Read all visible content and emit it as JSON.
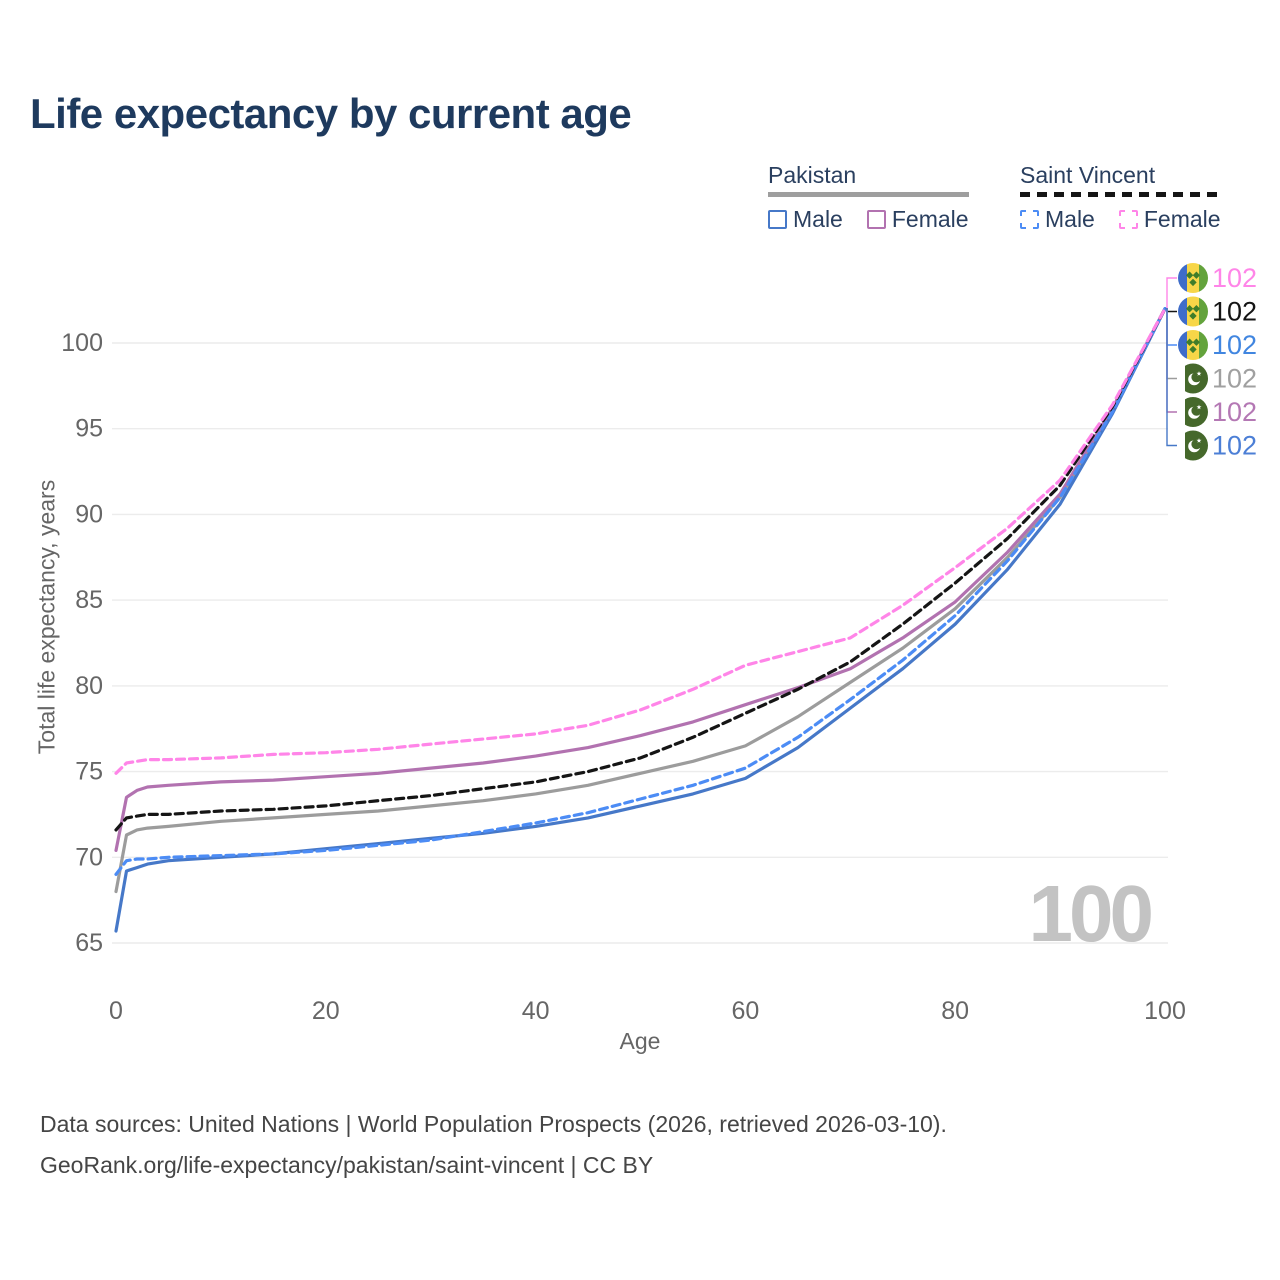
{
  "page": {
    "title": "Life expectancy by current age"
  },
  "legend": {
    "pakistan": {
      "label": "Pakistan",
      "underline_color": "#9E9E9E",
      "underline_style": "solid",
      "male_label": "Male",
      "female_label": "Female",
      "male_color": "#4678C8",
      "female_color": "#B272B0"
    },
    "saint_vincent": {
      "label": "Saint Vincent",
      "underline_color": "#151515",
      "underline_style": "dashed",
      "male_label": "Male",
      "female_label": "Female",
      "male_color": "#4C8CF5",
      "female_color": "#FF85E8"
    }
  },
  "axes": {
    "x_label": "Age",
    "y_label": "Total life expectancy, years"
  },
  "watermark": {
    "current_age": "100",
    "color": "#C3C3C3"
  },
  "footer": {
    "line1": "Data sources: United Nations | World Population Prospects (2026, retrieved 2026-03-10).",
    "line2": "GeoRank.org/life-expectancy/pakistan/saint-vincent | CC BY"
  },
  "chart_data": {
    "type": "line",
    "title": "Life expectancy by current age",
    "xlabel": "Age",
    "ylabel": "Total life expectancy, years",
    "xlim": [
      0,
      100
    ],
    "ylim": [
      63.5,
      103
    ],
    "x_ticks": [
      0,
      20,
      40,
      60,
      80,
      100
    ],
    "y_ticks": [
      65,
      70,
      75,
      80,
      85,
      90,
      95,
      100
    ],
    "grid": "horizontal",
    "legend_position": "top-right",
    "current_age_display": "100",
    "x": [
      0,
      1,
      2,
      3,
      5,
      10,
      15,
      20,
      25,
      30,
      35,
      40,
      45,
      50,
      55,
      60,
      65,
      70,
      75,
      80,
      85,
      90,
      95,
      100
    ],
    "series": [
      {
        "id": "saint-vincent-female",
        "name": "Saint Vincent Female",
        "country": "Saint Vincent",
        "sex": "Female",
        "line_style": "dashed",
        "color": "#FF85E8",
        "label_color": "#FF85E8",
        "flag": "saint-vincent",
        "end_label": "102",
        "end_value": 102,
        "values": [
          74.9,
          75.5,
          75.6,
          75.7,
          75.7,
          75.8,
          76.0,
          76.1,
          76.3,
          76.6,
          76.9,
          77.2,
          77.7,
          78.6,
          79.8,
          81.2,
          82.0,
          82.8,
          84.7,
          86.9,
          89.2,
          92.0,
          96.4,
          102
        ]
      },
      {
        "id": "saint-vincent-all",
        "name": "Saint Vincent All",
        "country": "Saint Vincent",
        "sex": "All",
        "line_style": "dashed",
        "color": "#151515",
        "label_color": "#151515",
        "flag": "saint-vincent",
        "end_label": "102",
        "end_value": 102,
        "values": [
          71.6,
          72.3,
          72.4,
          72.5,
          72.5,
          72.7,
          72.8,
          73.0,
          73.3,
          73.6,
          74.0,
          74.4,
          75.0,
          75.8,
          77.0,
          78.4,
          79.8,
          81.4,
          83.6,
          86.0,
          88.6,
          91.7,
          96.3,
          102
        ]
      },
      {
        "id": "saint-vincent-male",
        "name": "Saint Vincent Male",
        "country": "Saint Vincent",
        "sex": "Male",
        "line_style": "dashed",
        "color": "#4C8CF5",
        "label_color": "#4186E0",
        "flag": "saint-vincent",
        "end_label": "102",
        "end_value": 102,
        "values": [
          69.0,
          69.8,
          69.9,
          69.9,
          70.0,
          70.1,
          70.2,
          70.4,
          70.7,
          71.0,
          71.5,
          72.0,
          72.6,
          73.4,
          74.2,
          75.2,
          77.0,
          79.2,
          81.5,
          84.1,
          87.3,
          91.0,
          96.0,
          102
        ]
      },
      {
        "id": "pakistan-all",
        "name": "Pakistan All",
        "country": "Pakistan",
        "sex": "All",
        "line_style": "solid",
        "color": "#9C9C9C",
        "label_color": "#A0A0A0",
        "flag": "pakistan",
        "end_label": "102",
        "end_value": 102,
        "values": [
          68.0,
          71.3,
          71.6,
          71.7,
          71.8,
          72.1,
          72.3,
          72.5,
          72.7,
          73.0,
          73.3,
          73.7,
          74.2,
          74.9,
          75.6,
          76.5,
          78.2,
          80.2,
          82.2,
          84.5,
          87.5,
          91.0,
          96.1,
          102
        ]
      },
      {
        "id": "pakistan-female",
        "name": "Pakistan Female",
        "country": "Pakistan",
        "sex": "Female",
        "line_style": "solid",
        "color": "#B272B0",
        "label_color": "#B478B4",
        "flag": "pakistan",
        "end_label": "102",
        "end_value": 102,
        "values": [
          70.4,
          73.5,
          73.9,
          74.1,
          74.2,
          74.4,
          74.5,
          74.7,
          74.9,
          75.2,
          75.5,
          75.9,
          76.4,
          77.1,
          77.9,
          78.9,
          79.9,
          81.0,
          82.8,
          84.9,
          87.8,
          91.2,
          96.2,
          102
        ]
      },
      {
        "id": "pakistan-male",
        "name": "Pakistan Male",
        "country": "Pakistan",
        "sex": "Male",
        "line_style": "solid",
        "color": "#4678C8",
        "label_color": "#4C7FD6",
        "flag": "pakistan",
        "end_label": "102",
        "end_value": 102,
        "values": [
          65.7,
          69.2,
          69.4,
          69.6,
          69.8,
          70.0,
          70.2,
          70.5,
          70.8,
          71.1,
          71.4,
          71.8,
          72.3,
          73.0,
          73.7,
          74.6,
          76.4,
          78.7,
          81.0,
          83.6,
          86.8,
          90.6,
          95.9,
          102
        ]
      }
    ]
  }
}
